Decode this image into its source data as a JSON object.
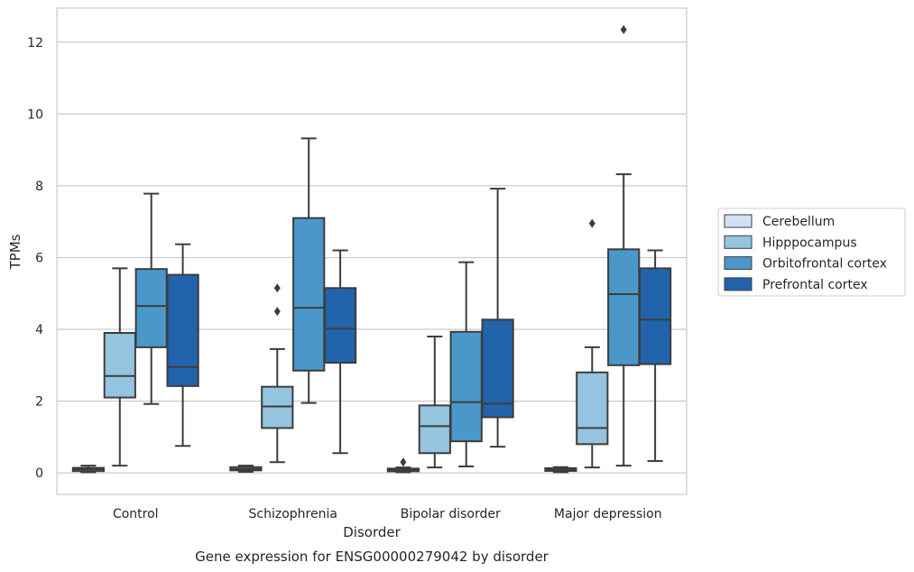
{
  "chart_data": {
    "type": "box",
    "title": "Gene expression for ENSG00000279042 by disorder",
    "xlabel": "Disorder",
    "ylabel": "TPMs",
    "ylim": [
      -0.6,
      12.95
    ],
    "yticks": [
      0,
      2,
      4,
      6,
      8,
      10,
      12
    ],
    "grid": "horizontal",
    "legend_position": "right-center",
    "categories": [
      "Control",
      "Schizophrenia",
      "Bipolar disorder",
      "Major depression"
    ],
    "series": [
      {
        "name": "Cerebellum",
        "color": "#d0e1f2",
        "boxes": [
          {
            "whisker_low": 0.02,
            "q1": 0.05,
            "median": 0.1,
            "q3": 0.14,
            "whisker_high": 0.2,
            "outliers": []
          },
          {
            "whisker_low": 0.03,
            "q1": 0.07,
            "median": 0.11,
            "q3": 0.16,
            "whisker_high": 0.2,
            "outliers": []
          },
          {
            "whisker_low": 0.02,
            "q1": 0.05,
            "median": 0.08,
            "q3": 0.12,
            "whisker_high": 0.15,
            "outliers": [
              0.3
            ]
          },
          {
            "whisker_low": 0.02,
            "q1": 0.06,
            "median": 0.1,
            "q3": 0.13,
            "whisker_high": 0.16,
            "outliers": []
          }
        ]
      },
      {
        "name": "Hipppocampus",
        "color": "#94c4df",
        "boxes": [
          {
            "whisker_low": 0.2,
            "q1": 2.1,
            "median": 2.7,
            "q3": 3.9,
            "whisker_high": 5.7,
            "outliers": []
          },
          {
            "whisker_low": 0.3,
            "q1": 1.25,
            "median": 1.85,
            "q3": 2.4,
            "whisker_high": 3.45,
            "outliers": [
              4.5,
              5.15
            ]
          },
          {
            "whisker_low": 0.15,
            "q1": 0.55,
            "median": 1.3,
            "q3": 1.88,
            "whisker_high": 3.8,
            "outliers": []
          },
          {
            "whisker_low": 0.15,
            "q1": 0.8,
            "median": 1.25,
            "q3": 2.8,
            "whisker_high": 3.5,
            "outliers": [
              6.95
            ]
          }
        ]
      },
      {
        "name": "Orbitofrontal cortex",
        "color": "#4a98c9",
        "boxes": [
          {
            "whisker_low": 1.92,
            "q1": 3.5,
            "median": 4.65,
            "q3": 5.68,
            "whisker_high": 7.78,
            "outliers": []
          },
          {
            "whisker_low": 1.95,
            "q1": 2.85,
            "median": 4.6,
            "q3": 7.1,
            "whisker_high": 9.32,
            "outliers": []
          },
          {
            "whisker_low": 0.18,
            "q1": 0.88,
            "median": 1.97,
            "q3": 3.93,
            "whisker_high": 5.87,
            "outliers": []
          },
          {
            "whisker_low": 0.2,
            "q1": 3.0,
            "median": 4.98,
            "q3": 6.23,
            "whisker_high": 8.32,
            "outliers": [
              12.35
            ]
          }
        ]
      },
      {
        "name": "Prefrontal cortex",
        "color": "#2164ab",
        "boxes": [
          {
            "whisker_low": 0.75,
            "q1": 2.42,
            "median": 2.95,
            "q3": 5.52,
            "whisker_high": 6.37,
            "outliers": []
          },
          {
            "whisker_low": 0.55,
            "q1": 3.07,
            "median": 4.02,
            "q3": 5.15,
            "whisker_high": 6.2,
            "outliers": []
          },
          {
            "whisker_low": 0.73,
            "q1": 1.55,
            "median": 1.93,
            "q3": 4.27,
            "whisker_high": 7.92,
            "outliers": []
          },
          {
            "whisker_low": 0.33,
            "q1": 3.03,
            "median": 4.27,
            "q3": 5.7,
            "whisker_high": 6.2,
            "outliers": []
          }
        ]
      }
    ]
  }
}
